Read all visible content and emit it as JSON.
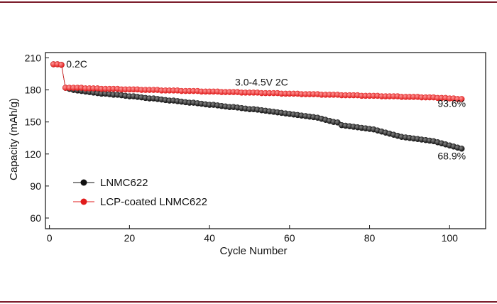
{
  "chart_data": {
    "type": "scatter",
    "title": "",
    "xlabel": "Cycle Number",
    "ylabel": "Capacity (mAh/g)",
    "xlim": [
      -1,
      109
    ],
    "ylim": [
      50,
      215
    ],
    "xticks": [
      0,
      20,
      40,
      60,
      80,
      100
    ],
    "yticks": [
      60,
      90,
      120,
      150,
      180,
      210
    ],
    "grid": false,
    "legend_position": "bottom-left",
    "annotations": [
      {
        "text": "0.2C",
        "x": 4.2,
        "y": 201
      },
      {
        "text": "3.0-4.5V 2C",
        "x": 53,
        "y": 184
      },
      {
        "text": "93.6%",
        "x": 97,
        "y": 164
      },
      {
        "text": "68.9%",
        "x": 97,
        "y": 115
      }
    ],
    "series": [
      {
        "name": "LNMC622",
        "color": "#111111",
        "x": [
          1,
          2,
          3,
          4,
          5,
          6,
          7,
          8,
          9,
          10,
          11,
          12,
          13,
          14,
          15,
          16,
          17,
          18,
          19,
          20,
          21,
          22,
          23,
          24,
          25,
          26,
          27,
          28,
          29,
          30,
          31,
          32,
          33,
          34,
          35,
          36,
          37,
          38,
          39,
          40,
          41,
          42,
          43,
          44,
          45,
          46,
          47,
          48,
          49,
          50,
          51,
          52,
          53,
          54,
          55,
          56,
          57,
          58,
          59,
          60,
          61,
          62,
          63,
          64,
          65,
          66,
          67,
          68,
          69,
          70,
          71,
          72,
          73,
          74,
          75,
          76,
          77,
          78,
          79,
          80,
          81,
          82,
          83,
          84,
          85,
          86,
          87,
          88,
          89,
          90,
          91,
          92,
          93,
          94,
          95,
          96,
          97,
          98,
          99,
          100,
          101,
          102,
          103
        ],
        "values": [
          204,
          204,
          203.5,
          182,
          181,
          180,
          179.5,
          179,
          178.5,
          178,
          177.5,
          177,
          176.5,
          176.5,
          176,
          175.5,
          175.5,
          175,
          174.5,
          174,
          174,
          173.5,
          173,
          172.5,
          172,
          172,
          171.5,
          171,
          170.5,
          170,
          170,
          169.5,
          169,
          168.5,
          168,
          168,
          167.5,
          167,
          166.5,
          166,
          166,
          165.5,
          165,
          164.5,
          164,
          164,
          163.5,
          163,
          162.5,
          162,
          162,
          161.5,
          161,
          160.5,
          160,
          159.5,
          159,
          158.5,
          158,
          157.5,
          157,
          156.5,
          156,
          155.5,
          155,
          154.5,
          154,
          153,
          152,
          151,
          150,
          149.5,
          147,
          146.5,
          146,
          145.5,
          145,
          144.5,
          144,
          143.5,
          143,
          142,
          141,
          140,
          139,
          138,
          137,
          136,
          135.5,
          135,
          134.5,
          134,
          133.5,
          133,
          132.5,
          132,
          131,
          130,
          129,
          128,
          127,
          126,
          125
        ]
      },
      {
        "name": "LCP-coated LNMC622",
        "color": "#e01b1b",
        "x": [
          1,
          2,
          3,
          4,
          5,
          6,
          7,
          8,
          9,
          10,
          11,
          12,
          13,
          14,
          15,
          16,
          17,
          18,
          19,
          20,
          21,
          22,
          23,
          24,
          25,
          26,
          27,
          28,
          29,
          30,
          31,
          32,
          33,
          34,
          35,
          36,
          37,
          38,
          39,
          40,
          41,
          42,
          43,
          44,
          45,
          46,
          47,
          48,
          49,
          50,
          51,
          52,
          53,
          54,
          55,
          56,
          57,
          58,
          59,
          60,
          61,
          62,
          63,
          64,
          65,
          66,
          67,
          68,
          69,
          70,
          71,
          72,
          73,
          74,
          75,
          76,
          77,
          78,
          79,
          80,
          81,
          82,
          83,
          84,
          85,
          86,
          87,
          88,
          89,
          90,
          91,
          92,
          93,
          94,
          95,
          96,
          97,
          98,
          99,
          100,
          101,
          102,
          103
        ],
        "values": [
          204,
          204,
          203.5,
          182,
          182,
          182,
          182,
          182,
          181.5,
          181.5,
          181.5,
          181.5,
          181,
          181,
          181,
          181,
          181,
          180.5,
          180.5,
          180.5,
          180.5,
          180.5,
          180,
          180,
          180,
          180,
          180,
          179.5,
          179.5,
          179.5,
          179.5,
          179.5,
          179,
          179,
          179,
          179,
          179,
          178.5,
          178.5,
          178.5,
          178.5,
          178.5,
          178,
          178,
          178,
          178,
          178,
          177.5,
          177.5,
          177.5,
          177.5,
          177.5,
          177,
          177,
          177,
          177,
          177,
          176.5,
          176.5,
          176.5,
          176.5,
          176.5,
          176,
          176,
          176,
          176,
          176,
          175.5,
          175.5,
          175.5,
          175.5,
          175.5,
          175,
          175,
          175,
          175,
          175,
          174.5,
          174.5,
          174.5,
          174.5,
          174.5,
          174,
          174,
          174,
          174,
          174,
          173.5,
          173.5,
          173.5,
          173.5,
          173.5,
          173,
          173,
          173,
          173,
          172.5,
          172.5,
          172.5,
          172,
          172,
          171.5,
          171.5
        ]
      }
    ]
  }
}
